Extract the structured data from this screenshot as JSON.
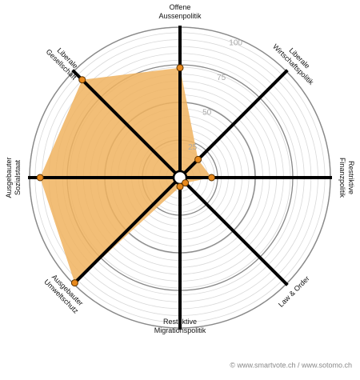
{
  "chart_data": {
    "type": "radar",
    "axes": [
      [
        "Offene",
        "Aussenpolitik"
      ],
      [
        "Liberale",
        "Wirtschaftspolitik"
      ],
      [
        "Restriktive",
        "Finanzpolitik"
      ],
      [
        "Law & Order"
      ],
      [
        "Restriktive",
        "Migrationspolitik"
      ],
      [
        "Ausgebauter",
        "Umweltschutz"
      ],
      [
        "Ausgebauter",
        "Sozialstaat"
      ],
      [
        "Liberale",
        "Gesellschaft"
      ]
    ],
    "values": [
      73,
      17,
      21,
      5,
      6,
      99,
      93,
      92
    ],
    "color": "#f0b35f",
    "point_color": "#e8891c",
    "rlim": [
      0,
      100
    ],
    "rticks": [
      25,
      50,
      75,
      100
    ],
    "footer": "© www.smartvote.ch / www.sotomo.ch"
  }
}
